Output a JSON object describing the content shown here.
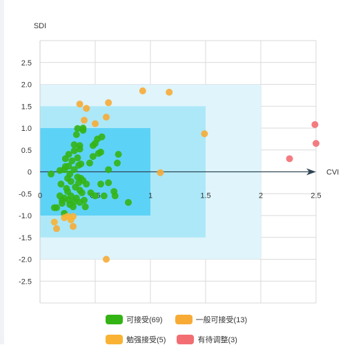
{
  "chart_data": {
    "type": "scatter",
    "xlabel": "CVI",
    "ylabel": "SDI",
    "xlim": [
      0,
      2.5
    ],
    "ylim": [
      -3,
      3
    ],
    "x_ticks": [
      "0",
      "0.5",
      "1",
      "1.5",
      "2",
      "2.5"
    ],
    "y_ticks": [
      "2.5",
      "2.0",
      "1.5",
      "1.0",
      "0.5",
      "0",
      "-0.5",
      "-1.0",
      "-1.5",
      "-2.0",
      "-2.5"
    ],
    "x_tick_values": [
      0,
      0.5,
      1,
      1.5,
      2,
      2.5
    ],
    "y_tick_values": [
      2.5,
      2,
      1.5,
      1,
      0.5,
      0,
      -0.5,
      -1,
      -1.5,
      -2,
      -2.5
    ],
    "zones": [
      {
        "xmax": 2,
        "ymax": 2,
        "color": "#dff4fb"
      },
      {
        "xmax": 1.5,
        "ymax": 1.5,
        "color": "#ade8f8"
      },
      {
        "xmax": 1,
        "ymax": 1,
        "color": "#5dd2f7"
      }
    ],
    "legend_position": "bottom",
    "series": [
      {
        "name": "可接受(69)",
        "color": "#34b414",
        "points": [
          [
            0.1,
            -0.05
          ],
          [
            0.13,
            -0.82
          ],
          [
            0.15,
            -0.82
          ],
          [
            0.18,
            -0.55
          ],
          [
            0.18,
            0.03
          ],
          [
            0.19,
            -0.28
          ],
          [
            0.2,
            -0.72
          ],
          [
            0.22,
            0.05
          ],
          [
            0.22,
            -0.6
          ],
          [
            0.22,
            -0.95
          ],
          [
            0.23,
            0.12
          ],
          [
            0.23,
            0.3
          ],
          [
            0.24,
            -0.38
          ],
          [
            0.25,
            -0.15
          ],
          [
            0.25,
            -0.45
          ],
          [
            0.26,
            0.4
          ],
          [
            0.26,
            0.13
          ],
          [
            0.26,
            -0.65
          ],
          [
            0.27,
            -0.05
          ],
          [
            0.27,
            -0.75
          ],
          [
            0.28,
            -0.22
          ],
          [
            0.28,
            -0.55
          ],
          [
            0.29,
            0.25
          ],
          [
            0.3,
            -0.8
          ],
          [
            0.31,
            0.05
          ],
          [
            0.31,
            0.62
          ],
          [
            0.31,
            0.48
          ],
          [
            0.31,
            -0.68
          ],
          [
            0.32,
            -0.35
          ],
          [
            0.33,
            -0.6
          ],
          [
            0.34,
            0.32
          ],
          [
            0.34,
            0.99
          ],
          [
            0.34,
            -0.12
          ],
          [
            0.35,
            0.15
          ],
          [
            0.35,
            -0.25
          ],
          [
            0.36,
            0.52
          ],
          [
            0.36,
            0.6
          ],
          [
            0.36,
            -0.7
          ],
          [
            0.37,
            0.18
          ],
          [
            0.37,
            -0.15
          ],
          [
            0.38,
            -0.48
          ],
          [
            0.39,
            0.95
          ],
          [
            0.39,
            1.0
          ],
          [
            0.39,
            -0.2
          ],
          [
            0.4,
            -0.65
          ],
          [
            0.41,
            -0.8
          ],
          [
            0.42,
            -0.28
          ],
          [
            0.45,
            0.2
          ],
          [
            0.46,
            -0.48
          ],
          [
            0.48,
            0.35
          ],
          [
            0.48,
            0.6
          ],
          [
            0.5,
            0.65
          ],
          [
            0.5,
            -0.55
          ],
          [
            0.52,
            0.75
          ],
          [
            0.53,
            0.42
          ],
          [
            0.55,
            -0.28
          ],
          [
            0.55,
            0.45
          ],
          [
            0.56,
            0.8
          ],
          [
            0.58,
            -0.55
          ],
          [
            0.62,
            0.05
          ],
          [
            0.62,
            -0.25
          ],
          [
            0.67,
            -0.45
          ],
          [
            0.68,
            -0.55
          ],
          [
            0.7,
            0.2
          ],
          [
            0.71,
            0.4
          ],
          [
            0.8,
            -0.7
          ],
          [
            0.2,
            -0.65
          ],
          [
            0.33,
            0.85
          ],
          [
            0.36,
            -0.42
          ]
        ]
      },
      {
        "name": "一般可接受(13)",
        "color": "#f7ab35",
        "points": [
          [
            0.36,
            1.55
          ],
          [
            0.4,
            1.18
          ],
          [
            0.42,
            1.45
          ],
          [
            0.5,
            1.1
          ],
          [
            0.6,
            1.25
          ],
          [
            0.62,
            1.58
          ],
          [
            0.93,
            1.85
          ],
          [
            1.17,
            1.82
          ],
          [
            1.49,
            0.87
          ],
          [
            1.09,
            -0.02
          ],
          [
            0.6,
            -2.0
          ],
          [
            0.3,
            -1.25
          ],
          [
            0.15,
            -1.3
          ]
        ]
      },
      {
        "name": "勉强接受(5)",
        "color": "#f9b233",
        "points": [
          [
            0.13,
            -1.15
          ],
          [
            0.22,
            -1.05
          ],
          [
            0.25,
            -1.02
          ],
          [
            0.28,
            -1.1
          ],
          [
            0.3,
            -1.02
          ]
        ]
      },
      {
        "name": "有待调整(3)",
        "color": "#f26e73",
        "points": [
          [
            2.26,
            0.3
          ],
          [
            2.49,
            1.08
          ],
          [
            2.5,
            0.65
          ]
        ]
      }
    ]
  },
  "legend": {
    "items": [
      {
        "label": "可接受(69)",
        "color": "#34b414"
      },
      {
        "label": "一般可接受(13)",
        "color": "#f7ab35"
      },
      {
        "label": "勉强接受(5)",
        "color": "#f9b233"
      },
      {
        "label": "有待调整(3)",
        "color": "#f26e73"
      }
    ]
  }
}
